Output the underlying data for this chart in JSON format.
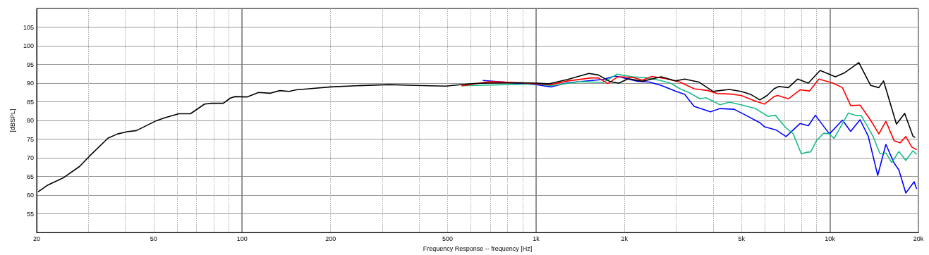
{
  "chart_data": {
    "type": "line",
    "xlabel": "Frequency Response -- frequency [Hz]",
    "ylabel": "[dBSPL]",
    "log": "x",
    "grid": true,
    "xlim": [
      20,
      20000
    ],
    "xticks": [
      {
        "value": 20,
        "label": "20"
      },
      {
        "value": 30,
        "label": null
      },
      {
        "value": 40,
        "label": null
      },
      {
        "value": 50,
        "label": "50"
      },
      {
        "value": 60,
        "label": null
      },
      {
        "value": 70,
        "label": null
      },
      {
        "value": 80,
        "label": null
      },
      {
        "value": 90,
        "label": null
      },
      {
        "value": 100,
        "label": "100"
      },
      {
        "value": 200,
        "label": "200"
      },
      {
        "value": 300,
        "label": null
      },
      {
        "value": 400,
        "label": null
      },
      {
        "value": 500,
        "label": "500"
      },
      {
        "value": 600,
        "label": null
      },
      {
        "value": 700,
        "label": null
      },
      {
        "value": 800,
        "label": null
      },
      {
        "value": 900,
        "label": null
      },
      {
        "value": 1000,
        "label": "1k"
      },
      {
        "value": 2000,
        "label": "2k"
      },
      {
        "value": 3000,
        "label": null
      },
      {
        "value": 4000,
        "label": null
      },
      {
        "value": 5000,
        "label": "5k"
      },
      {
        "value": 6000,
        "label": null
      },
      {
        "value": 7000,
        "label": null
      },
      {
        "value": 8000,
        "label": null
      },
      {
        "value": 9000,
        "label": null
      },
      {
        "value": 10000,
        "label": "10k"
      },
      {
        "value": 20000,
        "label": "20k"
      }
    ],
    "ylim": [
      50,
      110
    ],
    "yticks": [
      55,
      60,
      65,
      70,
      75,
      80,
      85,
      90,
      95,
      100,
      105
    ],
    "series": [
      {
        "color": "#0000ff",
        "x": [
          661,
          1000,
          1127,
          1282,
          1690,
          1854,
          1914,
          2218,
          2431,
          2666,
          2977,
          3205,
          3450,
          3924,
          4223,
          4719,
          5174,
          5778,
          5995,
          6454,
          6580,
          7090,
          7910,
          8440,
          8920,
          9960,
          11030,
          11760,
          12660,
          13500,
          14540,
          15500,
          16530,
          17150,
          18120,
          19340,
          19700
        ],
        "values": [
          90.7,
          89.6,
          89,
          90.1,
          91,
          91.9,
          91.7,
          90.5,
          90.3,
          89.4,
          87.9,
          87,
          83.8,
          82.3,
          83.2,
          83,
          81.4,
          79.4,
          78.3,
          77.6,
          77.4,
          75.7,
          79.2,
          78.6,
          81.4,
          76.4,
          80.1,
          77.1,
          80.2,
          75.8,
          65.3,
          73.6,
          68.6,
          66.8,
          60.6,
          63.6,
          61.8
        ]
      },
      {
        "color": "#1abc8c",
        "x": [
          560,
          1000,
          1127,
          1406,
          1690,
          1888,
          1914,
          2136,
          2386,
          2617,
          2870,
          3088,
          3325,
          3611,
          3782,
          3997,
          4223,
          4548,
          4985,
          5571,
          6163,
          6520,
          7090,
          7490,
          7990,
          8360,
          8600,
          9000,
          9520,
          9960,
          10330,
          10820,
          11550,
          12310,
          12780,
          14010,
          14800,
          15500,
          16230,
          17150,
          18120,
          19160,
          19700
        ],
        "values": [
          89.3,
          89.8,
          89.3,
          90.4,
          90.2,
          92.4,
          92.3,
          91.7,
          91.4,
          90.8,
          90,
          88.5,
          87.4,
          85.8,
          86.1,
          85.2,
          84.2,
          84.9,
          84.2,
          83.2,
          81.1,
          81.4,
          78,
          76.5,
          71.1,
          71.5,
          71.6,
          74.6,
          76.6,
          76.4,
          75.2,
          78,
          82,
          81.3,
          81.3,
          75.8,
          71.1,
          71.3,
          68.7,
          71.7,
          69.3,
          71.9,
          71
        ]
      },
      {
        "color": "#ff0000",
        "x": [
          560,
          698,
          887,
          1127,
          1282,
          1542,
          1629,
          1754,
          1888,
          1914,
          2136,
          2300,
          2477,
          2766,
          3088,
          3450,
          3852,
          4146,
          4548,
          4985,
          5571,
          5995,
          6454,
          6640,
          7220,
          7910,
          8520,
          9170,
          10240,
          11030,
          11760,
          12660,
          13750,
          14670,
          15500,
          16530,
          17310,
          18120,
          18980,
          19700
        ],
        "values": [
          89.3,
          90.4,
          90.1,
          89.6,
          90.6,
          91.4,
          91.4,
          89.9,
          91.6,
          91.7,
          91.5,
          90.8,
          91.8,
          91.2,
          90.3,
          88.5,
          88,
          87.2,
          87.1,
          86.7,
          85.2,
          84.4,
          86.4,
          86.7,
          85.8,
          88.2,
          87.9,
          91.1,
          90,
          88.8,
          84,
          84.1,
          80.1,
          76.4,
          79.8,
          74.6,
          74,
          75.7,
          72.9,
          72.2
        ]
      },
      {
        "color": "#000000",
        "x": [
          20.3,
          21.7,
          24.7,
          28,
          30.2,
          35,
          37.7,
          40.6,
          43.7,
          50.6,
          54.5,
          60.9,
          66.7,
          74.5,
          78.7,
          86.3,
          91.2,
          94.6,
          103.8,
          113.8,
          124.8,
          134.3,
          144.5,
          152.8,
          169,
          200,
          244,
          316,
          387,
          492,
          614,
          685,
          887,
          1000,
          1107,
          1282,
          1514,
          1629,
          1786,
          1914,
          2060,
          2300,
          2666,
          2977,
          3205,
          3578,
          3997,
          4548,
          4985,
          5369,
          5778,
          6115,
          6454,
          6700,
          7220,
          7770,
          8440,
          9260,
          10430,
          11230,
          12540,
          13750,
          14670,
          15220,
          16840,
          17960,
          19160,
          19450
        ],
        "values": [
          61,
          62.6,
          64.7,
          67.7,
          70.4,
          75.3,
          76.4,
          77,
          77.3,
          79.8,
          80.7,
          81.8,
          81.8,
          84.4,
          84.6,
          84.6,
          86,
          86.4,
          86.3,
          87.5,
          87.3,
          88,
          87.8,
          88.2,
          88.5,
          89,
          89.3,
          89.6,
          89.4,
          89.2,
          89.9,
          90,
          90.1,
          90,
          89.8,
          91,
          92.6,
          92.2,
          90.4,
          90,
          91.2,
          90.5,
          91.7,
          90.6,
          91.1,
          90.3,
          87.8,
          88.3,
          87.8,
          87,
          85.5,
          86.7,
          88.5,
          89.1,
          88.8,
          91.1,
          90,
          93.4,
          91.7,
          92.8,
          95.5,
          89.4,
          88.8,
          90.6,
          79,
          81.9,
          75.8,
          75.5
        ]
      }
    ]
  }
}
